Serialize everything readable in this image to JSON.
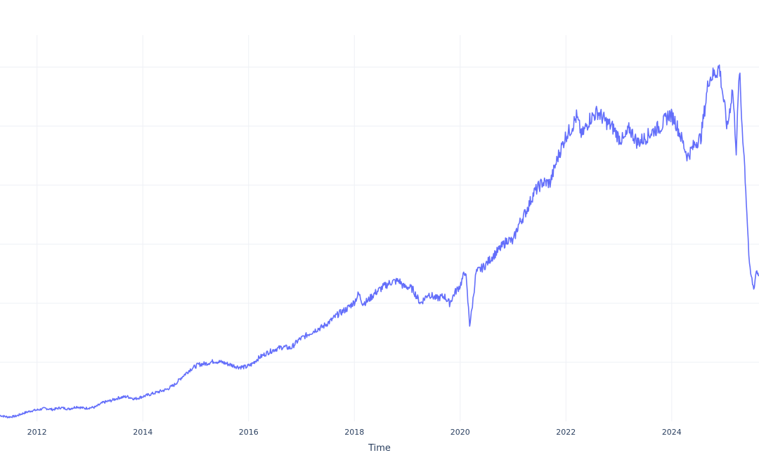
{
  "chart_data": {
    "type": "line",
    "title": "",
    "xlabel": "Time",
    "ylabel": "",
    "x_tick_labels": [
      "2012",
      "2014",
      "2016",
      "2018",
      "2020",
      "2022",
      "2024"
    ],
    "x_tick_values": [
      2012,
      2014,
      2016,
      2018,
      2020,
      2022,
      2024
    ],
    "xlim": [
      2011.3,
      2025.65
    ],
    "grid": true,
    "legend": "none",
    "series": [
      {
        "color": "#636efa",
        "x": [
          2011.3,
          2011.45,
          2011.6,
          2011.75,
          2011.9,
          2012.0,
          2012.15,
          2012.3,
          2012.45,
          2012.6,
          2012.75,
          2012.9,
          2013.1,
          2013.25,
          2013.4,
          2013.55,
          2013.7,
          2013.85,
          2014.0,
          2014.15,
          2014.3,
          2014.45,
          2014.6,
          2014.75,
          2014.9,
          2015.05,
          2015.2,
          2015.35,
          2015.5,
          2015.65,
          2015.8,
          2015.95,
          2016.05,
          2016.2,
          2016.35,
          2016.5,
          2016.65,
          2016.8,
          2016.95,
          2017.1,
          2017.25,
          2017.4,
          2017.55,
          2017.7,
          2017.85,
          2018.0,
          2018.08,
          2018.16,
          2018.25,
          2018.4,
          2018.55,
          2018.7,
          2018.85,
          2018.93,
          2019.0,
          2019.1,
          2019.25,
          2019.4,
          2019.55,
          2019.7,
          2019.8,
          2019.9,
          2020.0,
          2020.1,
          2020.18,
          2020.22,
          2020.3,
          2020.45,
          2020.6,
          2020.75,
          2020.9,
          2021.0,
          2021.1,
          2021.25,
          2021.4,
          2021.55,
          2021.7,
          2021.85,
          2022.0,
          2022.1,
          2022.2,
          2022.3,
          2022.45,
          2022.6,
          2022.75,
          2022.9,
          2023.0,
          2023.1,
          2023.2,
          2023.35,
          2023.5,
          2023.65,
          2023.8,
          2023.95,
          2024.05,
          2024.15,
          2024.3,
          2024.45,
          2024.55,
          2024.7,
          2024.85,
          2024.9,
          2024.97,
          2025.05,
          2025.15,
          2025.22,
          2025.28,
          2025.32,
          2025.37,
          2025.42,
          2025.47,
          2025.55,
          2025.6,
          2025.65
        ],
        "y": [
          0.25,
          0.18,
          0.22,
          0.35,
          0.45,
          0.48,
          0.55,
          0.5,
          0.58,
          0.52,
          0.62,
          0.55,
          0.6,
          0.8,
          0.88,
          1.0,
          1.05,
          0.95,
          1.05,
          1.15,
          1.25,
          1.35,
          1.55,
          1.9,
          2.2,
          2.4,
          2.45,
          2.55,
          2.5,
          2.4,
          2.3,
          2.3,
          2.4,
          2.7,
          2.9,
          3.05,
          3.15,
          3.1,
          3.45,
          3.65,
          3.85,
          4.0,
          4.25,
          4.55,
          4.75,
          5.05,
          5.4,
          5.0,
          5.1,
          5.45,
          5.7,
          5.9,
          5.95,
          5.7,
          5.7,
          5.6,
          5.0,
          5.4,
          5.2,
          5.3,
          5.0,
          5.45,
          5.75,
          6.4,
          4.1,
          4.7,
          6.3,
          6.55,
          6.95,
          7.3,
          7.7,
          7.6,
          8.3,
          8.9,
          9.7,
          10.1,
          10.1,
          11.2,
          12.1,
          12.4,
          12.9,
          12.1,
          12.8,
          13.1,
          12.7,
          12.4,
          12.0,
          11.9,
          12.4,
          11.8,
          12.0,
          12.3,
          12.5,
          13.0,
          12.8,
          12.2,
          11.2,
          11.8,
          12.0,
          14.5,
          14.8,
          15.0,
          13.8,
          12.4,
          14.1,
          11.5,
          14.9,
          12.9,
          11.2,
          8.9,
          6.5,
          5.6,
          6.4,
          6.2
        ],
        "ylim": [
          0,
          16.5
        ]
      }
    ]
  }
}
